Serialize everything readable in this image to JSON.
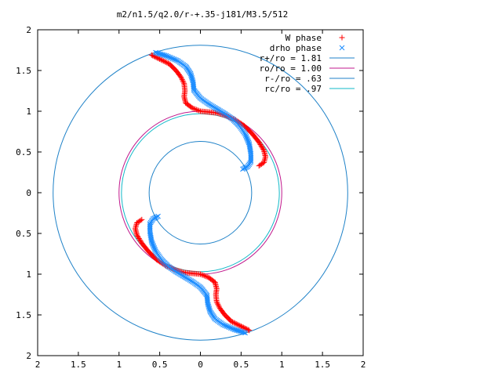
{
  "chart_data": {
    "type": "scatter",
    "title": "m2/n1.5/q2.0/r-+.35-j181/M3.5/512",
    "xlabel": "",
    "ylabel": "",
    "xlim": [
      -2,
      2
    ],
    "ylim": [
      -2,
      2
    ],
    "x_ticks": [
      {
        "value": -2,
        "label": "2"
      },
      {
        "value": -1.5,
        "label": "1.5"
      },
      {
        "value": -1,
        "label": "1"
      },
      {
        "value": -0.5,
        "label": "0.5"
      },
      {
        "value": 0,
        "label": "0"
      },
      {
        "value": 0.5,
        "label": "0.5"
      },
      {
        "value": 1,
        "label": "1"
      },
      {
        "value": 1.5,
        "label": "1.5"
      },
      {
        "value": 2,
        "label": "2"
      }
    ],
    "y_ticks": [
      {
        "value": 2,
        "label": "2"
      },
      {
        "value": 1.5,
        "label": "1.5"
      },
      {
        "value": 1,
        "label": "1"
      },
      {
        "value": 0.5,
        "label": "0.5"
      },
      {
        "value": 0,
        "label": "0"
      },
      {
        "value": -0.5,
        "label": "0.5"
      },
      {
        "value": -1,
        "label": "1"
      },
      {
        "value": -1.5,
        "label": "1.5"
      },
      {
        "value": -2,
        "label": "2"
      }
    ],
    "legend_position": "top-right",
    "circles": [
      {
        "name": "r+/ro = 1.81",
        "r": 1.81,
        "color": "#1f82c8"
      },
      {
        "name": "ro/ro = 1.00",
        "r": 1.0,
        "color": "#c0188c"
      },
      {
        "name": "r-/ro = .63",
        "r": 0.63,
        "color": "#1f82c8"
      },
      {
        "name": "rc/ro = .97",
        "r": 0.97,
        "color": "#11b8c8"
      }
    ],
    "series": [
      {
        "name": "W phase",
        "marker": "+",
        "color": "#ff0000",
        "points": [
          [
            -0.6,
            1.69
          ],
          [
            -0.5,
            1.64
          ],
          [
            -0.38,
            1.58
          ],
          [
            -0.3,
            1.5
          ],
          [
            -0.24,
            1.42
          ],
          [
            -0.2,
            1.34
          ],
          [
            -0.19,
            1.25
          ],
          [
            -0.2,
            1.18
          ],
          [
            -0.18,
            1.1
          ],
          [
            -0.1,
            1.04
          ],
          [
            0,
            1.0
          ],
          [
            0.1,
            0.99
          ],
          [
            0.2,
            0.98
          ],
          [
            0.3,
            0.95
          ],
          [
            0.42,
            0.9
          ],
          [
            0.54,
            0.82
          ],
          [
            0.64,
            0.72
          ],
          [
            0.72,
            0.62
          ],
          [
            0.78,
            0.52
          ],
          [
            0.8,
            0.44
          ],
          [
            0.78,
            0.37
          ],
          [
            0.72,
            0.33
          ],
          [
            0.6,
            -1.69
          ],
          [
            0.5,
            -1.64
          ],
          [
            0.38,
            -1.58
          ],
          [
            0.3,
            -1.5
          ],
          [
            0.24,
            -1.42
          ],
          [
            0.2,
            -1.34
          ],
          [
            0.19,
            -1.25
          ],
          [
            0.2,
            -1.18
          ],
          [
            0.18,
            -1.1
          ],
          [
            0.1,
            -1.04
          ],
          [
            0,
            -1.0
          ],
          [
            -0.1,
            -0.99
          ],
          [
            -0.2,
            -0.98
          ],
          [
            -0.3,
            -0.95
          ],
          [
            -0.42,
            -0.9
          ],
          [
            -0.54,
            -0.82
          ],
          [
            -0.64,
            -0.72
          ],
          [
            -0.72,
            -0.62
          ],
          [
            -0.78,
            -0.52
          ],
          [
            -0.8,
            -0.44
          ],
          [
            -0.78,
            -0.37
          ],
          [
            -0.72,
            -0.33
          ]
        ]
      },
      {
        "name": "drho phase",
        "marker": "x",
        "color": "#1a8cff",
        "points": [
          [
            -0.55,
            1.72
          ],
          [
            -0.42,
            1.68
          ],
          [
            -0.28,
            1.62
          ],
          [
            -0.18,
            1.55
          ],
          [
            -0.12,
            1.46
          ],
          [
            -0.09,
            1.36
          ],
          [
            -0.08,
            1.26
          ],
          [
            0.0,
            1.16
          ],
          [
            0.1,
            1.09
          ],
          [
            0.2,
            1.03
          ],
          [
            0.3,
            0.97
          ],
          [
            0.4,
            0.9
          ],
          [
            0.48,
            0.82
          ],
          [
            0.55,
            0.72
          ],
          [
            0.6,
            0.6
          ],
          [
            0.62,
            0.48
          ],
          [
            0.62,
            0.38
          ],
          [
            0.58,
            0.32
          ],
          [
            0.52,
            0.29
          ],
          [
            0.55,
            -1.72
          ],
          [
            0.42,
            -1.68
          ],
          [
            0.28,
            -1.62
          ],
          [
            0.18,
            -1.55
          ],
          [
            0.12,
            -1.46
          ],
          [
            0.09,
            -1.36
          ],
          [
            0.08,
            -1.26
          ],
          [
            0.0,
            -1.16
          ],
          [
            -0.1,
            -1.09
          ],
          [
            -0.2,
            -1.03
          ],
          [
            -0.3,
            -0.97
          ],
          [
            -0.4,
            -0.9
          ],
          [
            -0.48,
            -0.82
          ],
          [
            -0.55,
            -0.72
          ],
          [
            -0.6,
            -0.6
          ],
          [
            -0.62,
            -0.48
          ],
          [
            -0.62,
            -0.38
          ],
          [
            -0.58,
            -0.32
          ],
          [
            -0.52,
            -0.29
          ]
        ]
      }
    ]
  }
}
